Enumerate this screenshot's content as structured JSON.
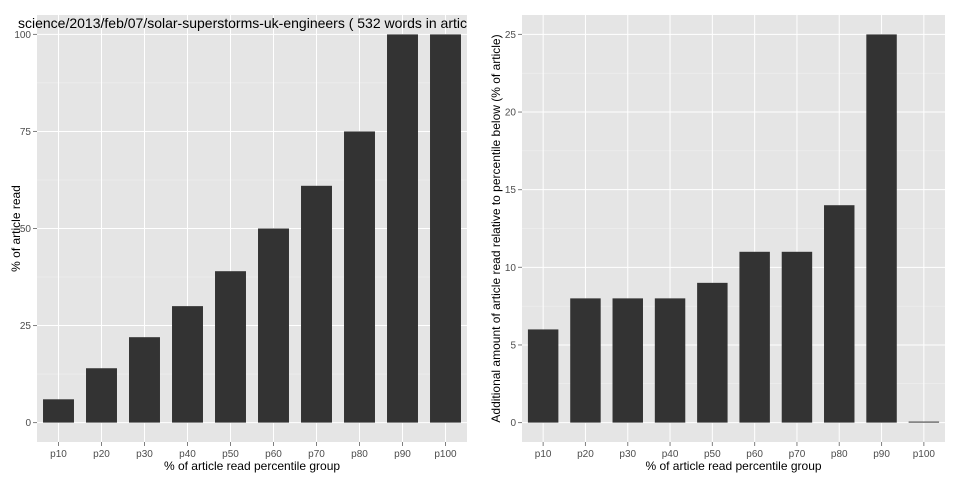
{
  "colors": {
    "panel_background": "#e5e5e5",
    "grid_major": "#ffffff",
    "grid_minor": "#f2f2f2",
    "bar_fill": "#333333",
    "tick_text": "#4d4d4d"
  },
  "chart_data": [
    {
      "type": "bar",
      "title": "science/2013/feb/07/solar-superstorms-uk-engineers ( 532 words in artic",
      "xlabel": "% of article read percentile group",
      "ylabel": "% of article read",
      "categories": [
        "p10",
        "p20",
        "p30",
        "p40",
        "p50",
        "p60",
        "p70",
        "p80",
        "p90",
        "p100"
      ],
      "values": [
        6,
        14,
        22,
        30,
        39,
        50,
        61,
        75,
        100,
        100
      ],
      "ylim": [
        -5,
        105
      ],
      "yticks": [
        0,
        25,
        50,
        75,
        100
      ],
      "grid": true
    },
    {
      "type": "bar",
      "title": "",
      "xlabel": "% of article read percentile group",
      "ylabel": "Additional amount of article read relative to percentile below (% of article)",
      "categories": [
        "p10",
        "p20",
        "p30",
        "p40",
        "p50",
        "p60",
        "p70",
        "p80",
        "p90",
        "p100"
      ],
      "values": [
        6,
        8,
        8,
        8,
        9,
        11,
        11,
        14,
        25,
        0
      ],
      "ylim": [
        -1.25,
        26.25
      ],
      "yticks": [
        0,
        5,
        10,
        15,
        20,
        25
      ],
      "grid": true
    }
  ]
}
